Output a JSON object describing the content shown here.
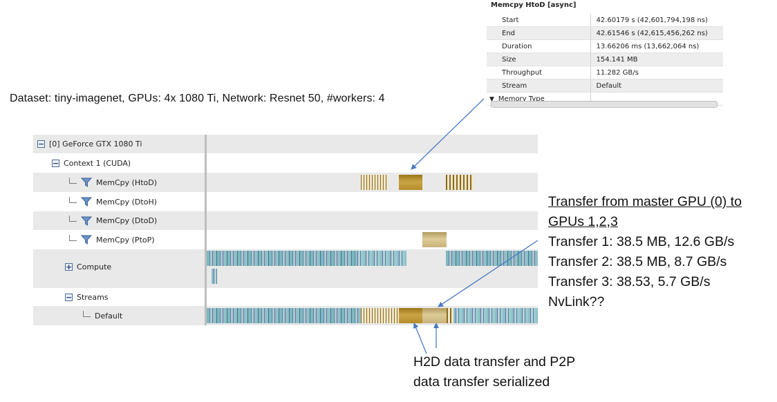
{
  "properties_panel": {
    "title": "Memcpy HtoD [async]",
    "rows": [
      {
        "key": "Start",
        "value": "42.60179 s (42,601,794,198 ns)"
      },
      {
        "key": "End",
        "value": "42.61546 s (42,615,456,262 ns)"
      },
      {
        "key": "Duration",
        "value": "13.66206 ms (13,662,064 ns)"
      },
      {
        "key": "Size",
        "value": "154.141 MB"
      },
      {
        "key": "Throughput",
        "value": "11.282 GB/s"
      },
      {
        "key": "Stream",
        "value": "Default"
      }
    ],
    "memory_type_label": "Memory Type"
  },
  "annotations": {
    "dataset": "Dataset: tiny-imagenet, GPUs: 4x 1080 Ti, Network: Resnet 50, #workers: 4",
    "transfer_heading_line1": "Transfer from master GPU (0) to",
    "transfer_heading_line2": "GPUs 1,2,3",
    "transfer_1": "Transfer 1: 38.5 MB, 12.6 GB/s",
    "transfer_2": "Transfer 2: 38.5 MB, 8.7 GB/s",
    "transfer_3": "Transfer 3: 38.53, 5.7 GB/s",
    "nvlink": "NvLink??",
    "serialized_line1": "H2D data transfer and P2P",
    "serialized_line2": "data transfer serialized"
  },
  "timeline": {
    "gpu": "[0] GeForce GTX 1080 Ti",
    "context": "Context 1 (CUDA)",
    "memcpy_htod": "MemCpy (HtoD)",
    "memcpy_dtoh": "MemCpy (DtoH)",
    "memcpy_dtod": "MemCpy (DtoD)",
    "memcpy_ptop": "MemCpy (PtoP)",
    "compute": "Compute",
    "streams": "Streams",
    "default": "Default"
  },
  "colors": {
    "memcpy": "#b58d2c",
    "ptop": "#c8b27a",
    "compute": "#7fb8bf",
    "arrow": "#4a78c2"
  }
}
